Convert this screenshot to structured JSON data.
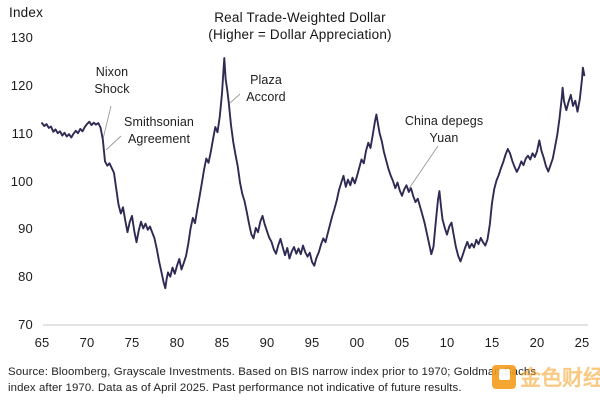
{
  "footer": {
    "line1": "Source: Bloomberg, Grayscale Investments. Based on BIS narrow index prior to 1970; Goldman Sachs",
    "line2": "index after 1970. Data as of April 2025. Past performance not indicative of future results."
  },
  "watermark": {
    "text": "金色财经",
    "color": "#F49C1C"
  },
  "chart_data": {
    "type": "line",
    "title": "Real Trade-Weighted Dollar",
    "subtitle": "(Higher = Dollar Appreciation)",
    "ylabel": "Index",
    "xlabel": "",
    "ylim": [
      70,
      130
    ],
    "xlim": [
      1965,
      2025.4
    ],
    "grid": false,
    "legend": false,
    "line_color": "#2E2A54",
    "axis_color": "#C9C9C9",
    "callout_color": "#9A9A9A",
    "y_ticks": [
      130,
      120,
      110,
      100,
      90,
      80,
      70
    ],
    "x_ticks": [
      {
        "label": "65",
        "year": 1965
      },
      {
        "label": "70",
        "year": 1970
      },
      {
        "label": "75",
        "year": 1975
      },
      {
        "label": "80",
        "year": 1980
      },
      {
        "label": "85",
        "year": 1985
      },
      {
        "label": "90",
        "year": 1990
      },
      {
        "label": "95",
        "year": 1995
      },
      {
        "label": "00",
        "year": 2000
      },
      {
        "label": "05",
        "year": 2005
      },
      {
        "label": "10",
        "year": 2010
      },
      {
        "label": "15",
        "year": 2015
      },
      {
        "label": "20",
        "year": 2020
      },
      {
        "label": "25",
        "year": 2025
      }
    ],
    "annotations": [
      {
        "name": "nixon-shock",
        "lines": [
          "Nixon",
          "Shock"
        ],
        "year": 1971.6,
        "value": 111
      },
      {
        "name": "smithsonian-agreement",
        "lines": [
          "Smithsonian",
          "Agreement"
        ],
        "year": 1972.0,
        "value": 106
      },
      {
        "name": "plaza-accord",
        "lines": [
          "Plaza",
          "Accord"
        ],
        "year": 1985.6,
        "value": 118
      },
      {
        "name": "china-depegs-yuan",
        "lines": [
          "China depegs",
          "Yuan"
        ],
        "year": 2005.5,
        "value": 99
      }
    ],
    "series": [
      {
        "name": "Real Trade-Weighted Dollar Index",
        "points": [
          [
            1965,
            112.2
          ],
          [
            1965.25,
            111.6
          ],
          [
            1965.5,
            112
          ],
          [
            1965.75,
            111.2
          ],
          [
            1966,
            111.5
          ],
          [
            1966.25,
            110.4
          ],
          [
            1966.5,
            110.9
          ],
          [
            1966.75,
            110.1
          ],
          [
            1967,
            110.5
          ],
          [
            1967.25,
            109.6
          ],
          [
            1967.5,
            110.2
          ],
          [
            1967.75,
            109.4
          ],
          [
            1968,
            109.9
          ],
          [
            1968.25,
            109.2
          ],
          [
            1968.5,
            110
          ],
          [
            1968.75,
            110.6
          ],
          [
            1969,
            110.1
          ],
          [
            1969.25,
            111
          ],
          [
            1969.5,
            110.5
          ],
          [
            1969.75,
            111.4
          ],
          [
            1970,
            112
          ],
          [
            1970.25,
            112.5
          ],
          [
            1970.5,
            111.8
          ],
          [
            1970.75,
            112.3
          ],
          [
            1971,
            111.9
          ],
          [
            1971.25,
            112.2
          ],
          [
            1971.5,
            111.3
          ],
          [
            1971.75,
            108.8
          ],
          [
            1972,
            104.2
          ],
          [
            1972.25,
            103.3
          ],
          [
            1972.5,
            103.8
          ],
          [
            1972.75,
            102.8
          ],
          [
            1973,
            101.8
          ],
          [
            1973.25,
            98.4
          ],
          [
            1973.5,
            95.2
          ],
          [
            1973.75,
            93.3
          ],
          [
            1974,
            94.6
          ],
          [
            1974.25,
            91.8
          ],
          [
            1974.5,
            89.4
          ],
          [
            1974.75,
            91.6
          ],
          [
            1975,
            92.8
          ],
          [
            1975.25,
            89.6
          ],
          [
            1975.5,
            87.3
          ],
          [
            1975.75,
            89.8
          ],
          [
            1976,
            91.6
          ],
          [
            1976.25,
            90.2
          ],
          [
            1976.5,
            91.2
          ],
          [
            1976.75,
            89.9
          ],
          [
            1977,
            90.6
          ],
          [
            1977.25,
            89.3
          ],
          [
            1977.5,
            88.1
          ],
          [
            1977.75,
            85.9
          ],
          [
            1978,
            83.4
          ],
          [
            1978.25,
            81.2
          ],
          [
            1978.5,
            79
          ],
          [
            1978.7,
            77.7
          ],
          [
            1978.85,
            79.6
          ],
          [
            1979,
            81
          ],
          [
            1979.25,
            80.1
          ],
          [
            1979.5,
            82
          ],
          [
            1979.75,
            80.7
          ],
          [
            1980,
            82.4
          ],
          [
            1980.25,
            83.8
          ],
          [
            1980.5,
            81.6
          ],
          [
            1980.75,
            83
          ],
          [
            1981,
            84.4
          ],
          [
            1981.25,
            87
          ],
          [
            1981.5,
            90.1
          ],
          [
            1981.75,
            92.4
          ],
          [
            1982,
            91.3
          ],
          [
            1982.25,
            94.2
          ],
          [
            1982.5,
            96.8
          ],
          [
            1982.75,
            99.6
          ],
          [
            1983,
            102.4
          ],
          [
            1983.25,
            104.8
          ],
          [
            1983.5,
            103.9
          ],
          [
            1983.75,
            106.2
          ],
          [
            1984,
            108.8
          ],
          [
            1984.25,
            111.4
          ],
          [
            1984.5,
            110.3
          ],
          [
            1984.75,
            113.6
          ],
          [
            1985,
            118.4
          ],
          [
            1985.15,
            123
          ],
          [
            1985.25,
            125.8
          ],
          [
            1985.4,
            121.5
          ],
          [
            1985.6,
            118.9
          ],
          [
            1985.75,
            116.4
          ],
          [
            1986,
            111.8
          ],
          [
            1986.25,
            108.2
          ],
          [
            1986.5,
            105.6
          ],
          [
            1986.75,
            103.1
          ],
          [
            1987,
            99.8
          ],
          [
            1987.25,
            97.4
          ],
          [
            1987.5,
            95.9
          ],
          [
            1987.75,
            93.6
          ],
          [
            1988,
            91.2
          ],
          [
            1988.25,
            89
          ],
          [
            1988.5,
            88.1
          ],
          [
            1988.75,
            90.3
          ],
          [
            1989,
            89.4
          ],
          [
            1989.25,
            91.6
          ],
          [
            1989.5,
            92.8
          ],
          [
            1989.75,
            91
          ],
          [
            1990,
            89.6
          ],
          [
            1990.25,
            88.2
          ],
          [
            1990.5,
            87.4
          ],
          [
            1990.75,
            85.8
          ],
          [
            1991,
            84.9
          ],
          [
            1991.25,
            86.7
          ],
          [
            1991.5,
            88
          ],
          [
            1991.75,
            86.2
          ],
          [
            1992,
            84.6
          ],
          [
            1992.25,
            86.1
          ],
          [
            1992.5,
            83.9
          ],
          [
            1992.75,
            85.4
          ],
          [
            1993,
            86.3
          ],
          [
            1993.25,
            84.9
          ],
          [
            1993.5,
            86
          ],
          [
            1993.75,
            84.8
          ],
          [
            1994,
            86.6
          ],
          [
            1994.25,
            85.2
          ],
          [
            1994.5,
            84.3
          ],
          [
            1994.75,
            85.1
          ],
          [
            1995,
            83.2
          ],
          [
            1995.25,
            82.4
          ],
          [
            1995.5,
            84.1
          ],
          [
            1995.75,
            85.2
          ],
          [
            1996,
            86.8
          ],
          [
            1996.25,
            88.1
          ],
          [
            1996.5,
            87.3
          ],
          [
            1996.75,
            89.2
          ],
          [
            1997,
            91
          ],
          [
            1997.25,
            92.8
          ],
          [
            1997.5,
            94.3
          ],
          [
            1997.75,
            96.1
          ],
          [
            1998,
            98.2
          ],
          [
            1998.25,
            99.8
          ],
          [
            1998.5,
            101.2
          ],
          [
            1998.75,
            98.9
          ],
          [
            1999,
            100.4
          ],
          [
            1999.25,
            99.2
          ],
          [
            1999.5,
            100.8
          ],
          [
            1999.75,
            99.6
          ],
          [
            2000,
            101.1
          ],
          [
            2000.25,
            102.9
          ],
          [
            2000.5,
            104.6
          ],
          [
            2000.75,
            103.8
          ],
          [
            2001,
            106.4
          ],
          [
            2001.25,
            108.1
          ],
          [
            2001.5,
            107
          ],
          [
            2001.75,
            109.8
          ],
          [
            2002,
            112.6
          ],
          [
            2002.15,
            114
          ],
          [
            2002.35,
            111.9
          ],
          [
            2002.5,
            110.2
          ],
          [
            2002.75,
            108.4
          ],
          [
            2003,
            106.1
          ],
          [
            2003.25,
            104.3
          ],
          [
            2003.5,
            102.6
          ],
          [
            2003.75,
            101.2
          ],
          [
            2004,
            100.1
          ],
          [
            2004.25,
            98.6
          ],
          [
            2004.5,
            99.8
          ],
          [
            2004.75,
            98.1
          ],
          [
            2005,
            97
          ],
          [
            2005.25,
            98.4
          ],
          [
            2005.5,
            99.2
          ],
          [
            2005.75,
            97.8
          ],
          [
            2006,
            98.6
          ],
          [
            2006.25,
            96.9
          ],
          [
            2006.5,
            95.7
          ],
          [
            2006.75,
            96.4
          ],
          [
            2007,
            94.8
          ],
          [
            2007.25,
            93.1
          ],
          [
            2007.5,
            91.4
          ],
          [
            2007.75,
            89.2
          ],
          [
            2008,
            87.1
          ],
          [
            2008.25,
            84.8
          ],
          [
            2008.5,
            86.4
          ],
          [
            2008.75,
            91.6
          ],
          [
            2009,
            96.2
          ],
          [
            2009.15,
            98
          ],
          [
            2009.35,
            94.6
          ],
          [
            2009.5,
            92.1
          ],
          [
            2009.75,
            90.3
          ],
          [
            2010,
            88.9
          ],
          [
            2010.25,
            90.6
          ],
          [
            2010.5,
            91.4
          ],
          [
            2010.75,
            88.7
          ],
          [
            2011,
            86.2
          ],
          [
            2011.25,
            84.4
          ],
          [
            2011.5,
            83.3
          ],
          [
            2011.75,
            84.7
          ],
          [
            2012,
            86.1
          ],
          [
            2012.25,
            87.4
          ],
          [
            2012.5,
            86.1
          ],
          [
            2012.75,
            87
          ],
          [
            2013,
            86.2
          ],
          [
            2013.25,
            87.8
          ],
          [
            2013.5,
            86.9
          ],
          [
            2013.75,
            88.2
          ],
          [
            2014,
            87.3
          ],
          [
            2014.25,
            86.6
          ],
          [
            2014.5,
            87.9
          ],
          [
            2014.75,
            91
          ],
          [
            2015,
            95.5
          ],
          [
            2015.25,
            98.5
          ],
          [
            2015.5,
            100.2
          ],
          [
            2015.75,
            101.4
          ],
          [
            2016,
            102.8
          ],
          [
            2016.25,
            104.1
          ],
          [
            2016.5,
            105.6
          ],
          [
            2016.75,
            106.8
          ],
          [
            2017,
            105.9
          ],
          [
            2017.25,
            104.3
          ],
          [
            2017.5,
            103.1
          ],
          [
            2017.75,
            102
          ],
          [
            2018,
            102.9
          ],
          [
            2018.25,
            104.2
          ],
          [
            2018.5,
            103.4
          ],
          [
            2018.75,
            104.8
          ],
          [
            2019,
            105.4
          ],
          [
            2019.25,
            104.6
          ],
          [
            2019.5,
            105.9
          ],
          [
            2019.75,
            105.1
          ],
          [
            2020,
            106.3
          ],
          [
            2020.25,
            108.6
          ],
          [
            2020.5,
            106.4
          ],
          [
            2020.75,
            104.9
          ],
          [
            2021,
            103.2
          ],
          [
            2021.25,
            102.1
          ],
          [
            2021.5,
            103.4
          ],
          [
            2021.75,
            104.8
          ],
          [
            2022,
            107.2
          ],
          [
            2022.25,
            109.8
          ],
          [
            2022.5,
            113.2
          ],
          [
            2022.75,
            117.6
          ],
          [
            2022.85,
            119.6
          ],
          [
            2023,
            116.8
          ],
          [
            2023.25,
            114.9
          ],
          [
            2023.5,
            116.6
          ],
          [
            2023.75,
            118.1
          ],
          [
            2024,
            115.8
          ],
          [
            2024.25,
            116.9
          ],
          [
            2024.5,
            114.6
          ],
          [
            2024.75,
            117.2
          ],
          [
            2025,
            121.4
          ],
          [
            2025.1,
            123.8
          ],
          [
            2025.25,
            122.2
          ]
        ]
      }
    ]
  }
}
